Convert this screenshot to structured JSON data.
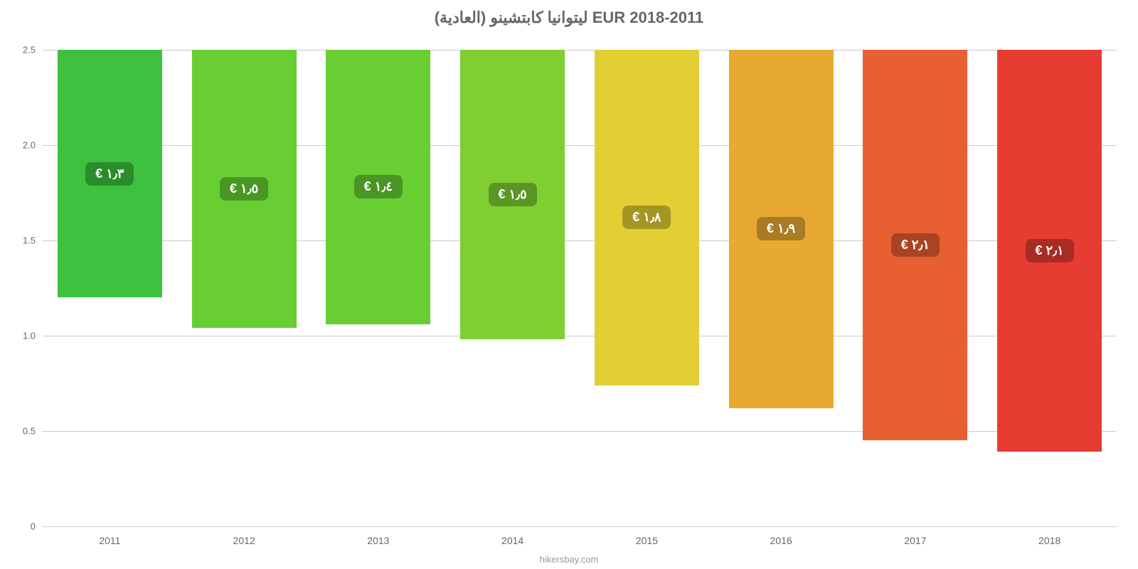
{
  "chart": {
    "type": "bar",
    "title": "ليتوانيا كابتشينو (العادية) EUR 2018-2011",
    "title_fontsize": 22,
    "title_color": "#666666",
    "background_color": "#ffffff",
    "grid_color": "#cccccc",
    "axis_label_color": "#666666",
    "ylim": [
      0,
      2.5
    ],
    "ytick_step": 0.5,
    "yticks": [
      "0",
      "0.5",
      "1.0",
      "1.5",
      "2.0",
      "2.5"
    ],
    "bar_width": 0.78,
    "categories": [
      "2011",
      "2012",
      "2013",
      "2014",
      "2015",
      "2016",
      "2017",
      "2018"
    ],
    "values": [
      1.3,
      1.46,
      1.44,
      1.52,
      1.76,
      1.88,
      2.05,
      2.11
    ],
    "value_labels": [
      "١٫٣ €",
      "١٫٥ €",
      "١٫٤ €",
      "١٫٥ €",
      "١٫٨ €",
      "١٫٩ €",
      "٢٫١ €",
      "٢٫١ €"
    ],
    "bar_colors": [
      "#3fc13f",
      "#68ce32",
      "#68ce32",
      "#7fce32",
      "#e3ce33",
      "#e7a932",
      "#e85f32",
      "#e73c32"
    ],
    "pill_colors": [
      "#2a8c2a",
      "#4a9624",
      "#4a9624",
      "#5a9624",
      "#a59525",
      "#a87b24",
      "#a84424",
      "#a82b24"
    ],
    "pill_text_color": "#ffffff",
    "pill_fontsize": 18,
    "xlabel_fontsize": 14,
    "credit": "hikersbay.com",
    "credit_color": "#999999"
  }
}
